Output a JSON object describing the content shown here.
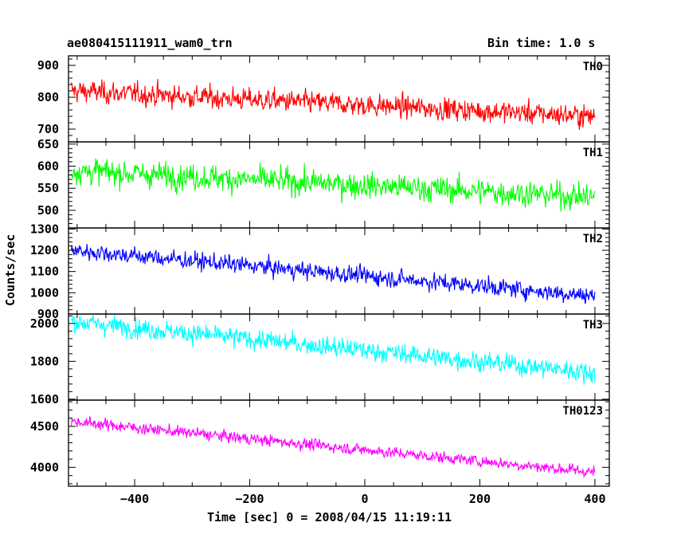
{
  "chart_data": {
    "type": "line",
    "title_left": "ae080415111911_wam0_trn",
    "title_right": "Bin time: 1.0 s",
    "xlabel": "Time [sec] 0 = 2008/04/15 11:19:11",
    "ylabel": "Counts/sec",
    "xlim": [
      -515,
      425
    ],
    "x_range": [
      -510,
      400
    ],
    "xticks": [
      -400,
      -200,
      0,
      200,
      400
    ],
    "panels": [
      {
        "name": "TH0",
        "color": "#ff0000",
        "ylim": [
          660,
          930
        ],
        "yticks": [
          700,
          800,
          900
        ],
        "trend_start": 820,
        "trend_end": 740,
        "noise": 30
      },
      {
        "name": "TH1",
        "color": "#00ff00",
        "ylim": [
          460,
          655
        ],
        "yticks": [
          500,
          550,
          600,
          650
        ],
        "trend_start": 590,
        "trend_end": 530,
        "noise": 25
      },
      {
        "name": "TH2",
        "color": "#0000ff",
        "ylim": [
          900,
          1305
        ],
        "yticks": [
          900,
          1000,
          1100,
          1200,
          1300
        ],
        "trend_start": 1200,
        "trend_end": 985,
        "noise": 35
      },
      {
        "name": "TH3",
        "color": "#00ffff",
        "ylim": [
          1595,
          2050
        ],
        "yticks": [
          1600,
          1800,
          2000
        ],
        "trend_start": 2010,
        "trend_end": 1740,
        "noise": 45
      },
      {
        "name": "TH0123",
        "color": "#ff00ff",
        "ylim": [
          3770,
          4820
        ],
        "yticks": [
          4000,
          4500
        ],
        "trend_start": 4560,
        "trend_end": 3940,
        "noise": 60
      }
    ]
  }
}
